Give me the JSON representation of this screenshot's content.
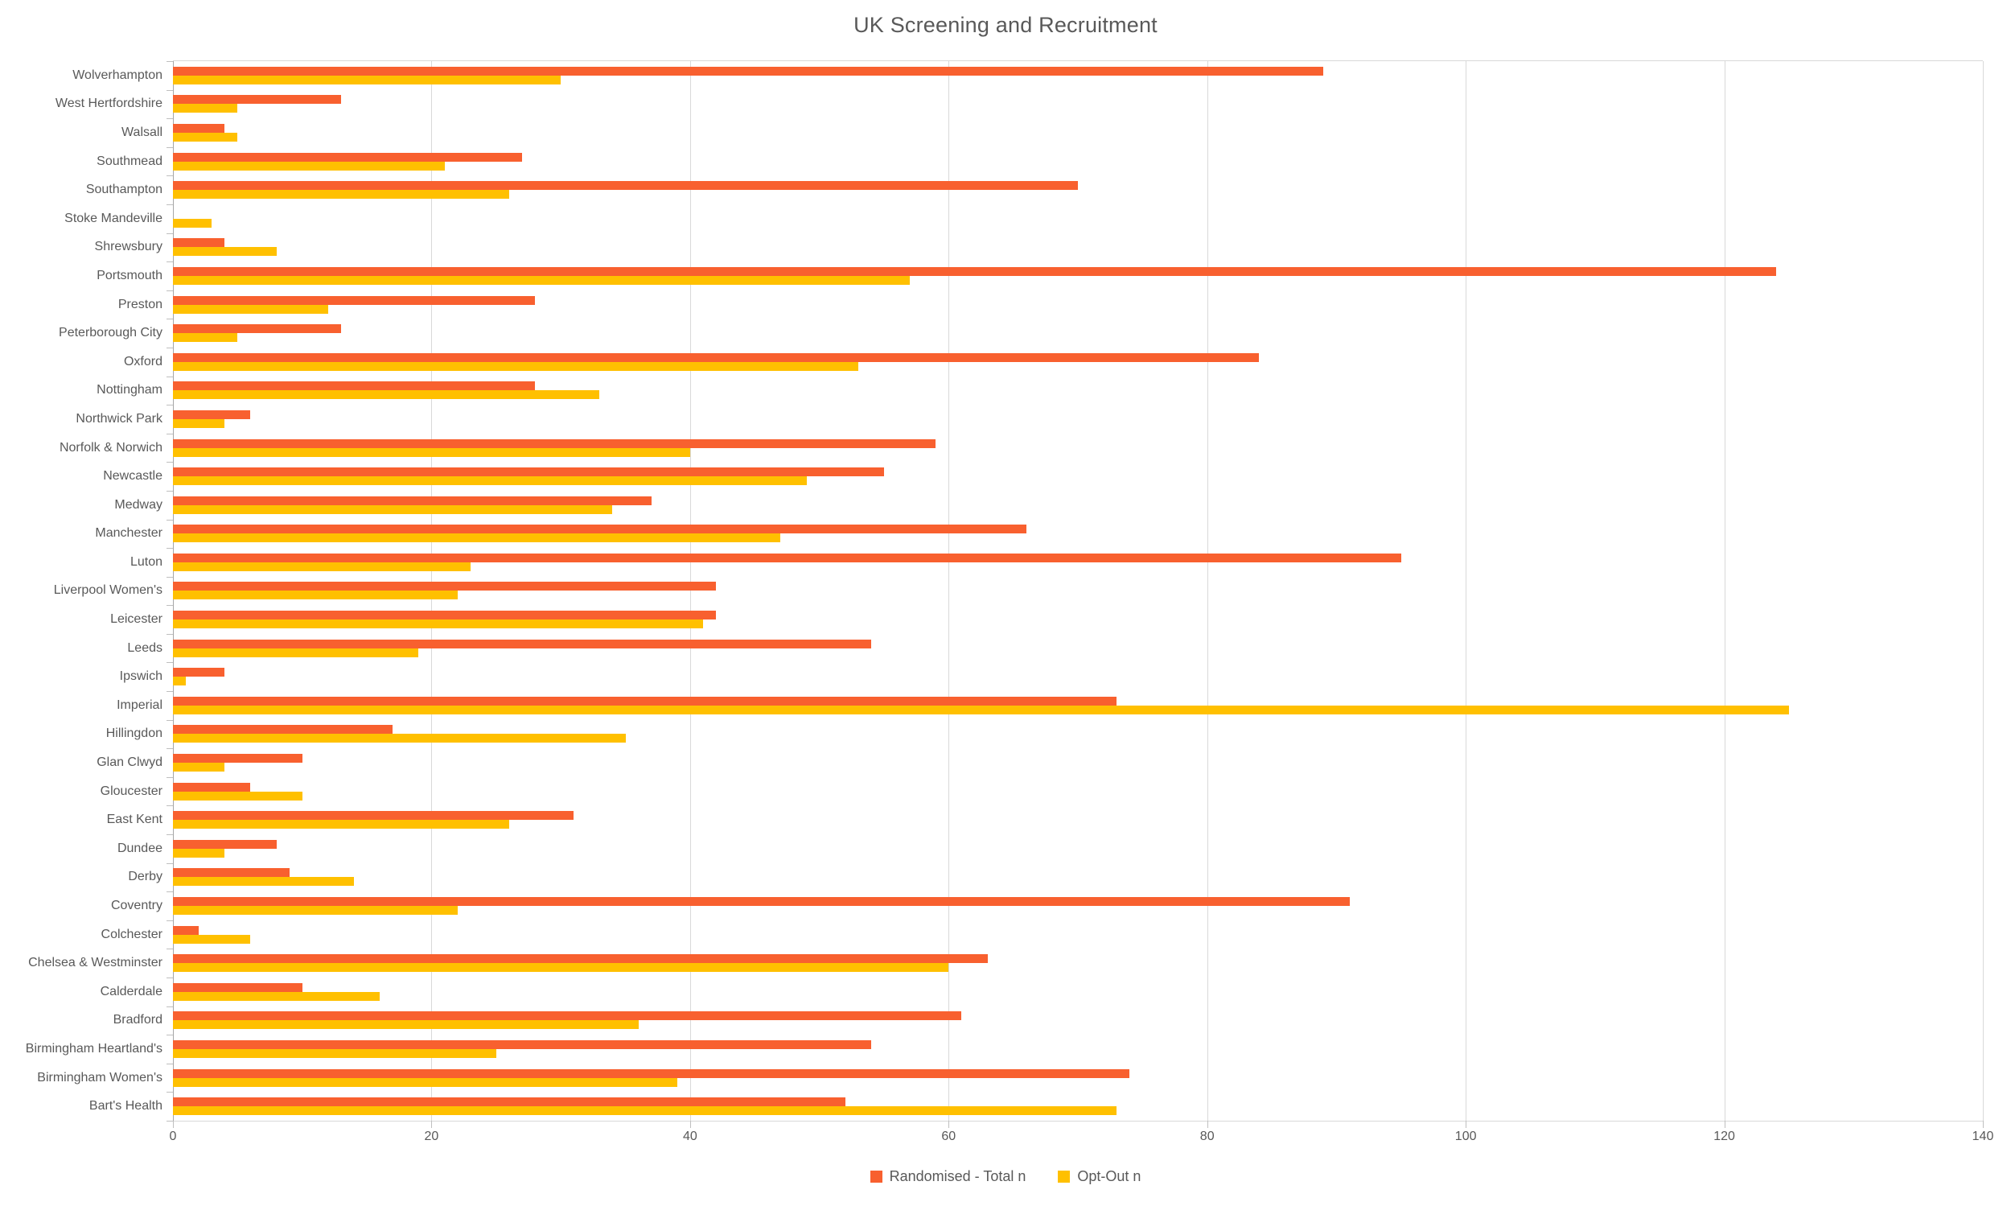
{
  "chart_data": {
    "type": "bar",
    "orientation": "horizontal",
    "title": "UK Screening and Recruitment",
    "xlabel": "",
    "ylabel": "",
    "xlim": [
      0,
      140
    ],
    "x_ticks": [
      0,
      20,
      40,
      60,
      80,
      100,
      120,
      140
    ],
    "gridlines": "vertical",
    "legend_position": "bottom-center",
    "categories": [
      "Wolverhampton",
      "West Hertfordshire",
      "Walsall",
      "Southmead",
      "Southampton",
      "Stoke Mandeville",
      "Shrewsbury",
      "Portsmouth",
      "Preston",
      "Peterborough City",
      "Oxford",
      "Nottingham",
      "Northwick Park",
      "Norfolk & Norwich",
      "Newcastle",
      "Medway",
      "Manchester",
      "Luton",
      "Liverpool Women's",
      "Leicester",
      "Leeds",
      "Ipswich",
      "Imperial",
      "Hillingdon",
      "Glan Clwyd",
      "Gloucester",
      "East Kent",
      "Dundee",
      "Derby",
      "Coventry",
      "Colchester",
      "Chelsea & Westminster",
      "Calderdale",
      "Bradford",
      "Birmingham Heartland's",
      "Birmingham Women's",
      "Bart's Health"
    ],
    "series": [
      {
        "name": "Randomised - Total n",
        "color": "#F8602F",
        "values": [
          89,
          13,
          4,
          27,
          70,
          0,
          4,
          124,
          28,
          13,
          84,
          28,
          6,
          59,
          55,
          37,
          66,
          95,
          42,
          42,
          54,
          4,
          73,
          17,
          10,
          6,
          31,
          8,
          9,
          91,
          2,
          63,
          10,
          61,
          54,
          74,
          52
        ]
      },
      {
        "name": "Opt-Out n",
        "color": "#FFC000",
        "values": [
          30,
          5,
          5,
          21,
          26,
          3,
          8,
          57,
          12,
          5,
          53,
          33,
          4,
          40,
          49,
          34,
          47,
          23,
          22,
          41,
          19,
          1,
          125,
          35,
          4,
          10,
          26,
          4,
          14,
          22,
          6,
          60,
          16,
          36,
          25,
          39,
          73
        ]
      }
    ]
  },
  "colors": {
    "gridline": "#D9D9D9",
    "axis_line": "#A6A6A6",
    "tick": "#BFBFBF",
    "text": "#595959",
    "background": "#FFFFFF"
  }
}
